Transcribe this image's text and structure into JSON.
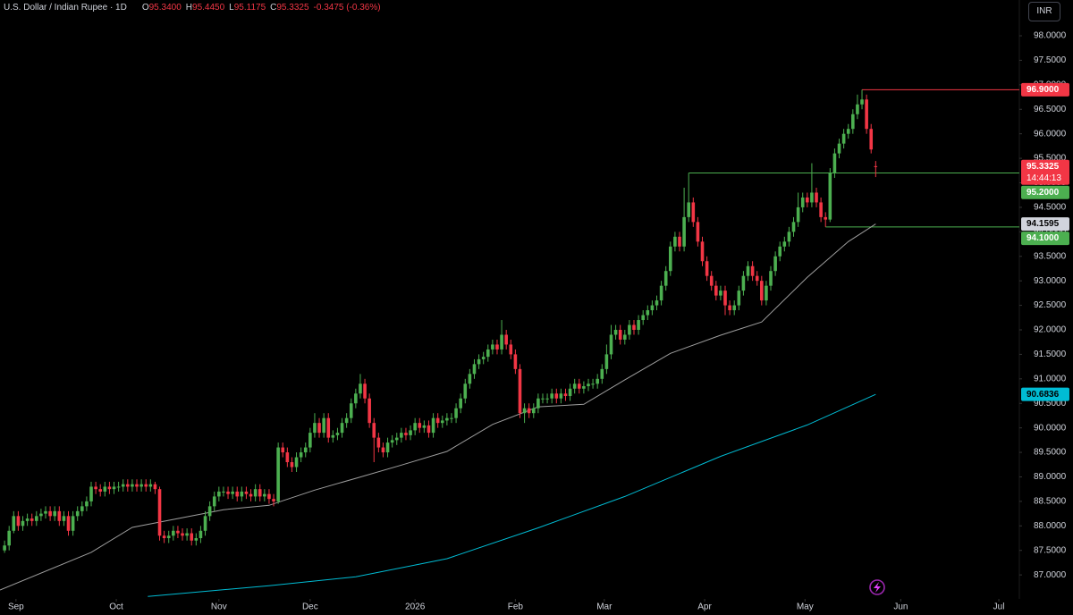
{
  "chart_data": {
    "type": "candlestick",
    "title": "U.S. Dollar / Indian Rupee · 1D",
    "ohlc_legend": [
      {
        "key": "O",
        "value": "95.3400"
      },
      {
        "key": "H",
        "value": "95.4450"
      },
      {
        "key": "L",
        "value": "95.1175"
      },
      {
        "key": "C",
        "value": "95.3325"
      }
    ],
    "change": "-0.3475 (-0.36%)",
    "currency": "INR",
    "up_color": "#4caf50",
    "down_color": "#f23645",
    "open": [
      87.5,
      87.6,
      87.9,
      88.2,
      88.0,
      88.1,
      88.15,
      88.1,
      88.2,
      88.25,
      88.3,
      88.2,
      88.3,
      88.1,
      88.2,
      87.9,
      88.2,
      88.3,
      88.4,
      88.5,
      88.8,
      88.75,
      88.7,
      88.8,
      88.75,
      88.8,
      88.8,
      88.85,
      88.8,
      88.85,
      88.8,
      88.85,
      88.8,
      88.85,
      88.75,
      87.8,
      87.75,
      87.8,
      87.9,
      87.85,
      87.8,
      87.85,
      87.7,
      87.75,
      87.9,
      88.2,
      88.4,
      88.6,
      88.7,
      88.7,
      88.65,
      88.7,
      88.6,
      88.7,
      88.65,
      88.6,
      88.75,
      88.6,
      88.65,
      88.55,
      88.5,
      89.6,
      89.5,
      89.3,
      89.2,
      89.4,
      89.5,
      89.6,
      89.9,
      90.1,
      89.9,
      90.2,
      89.8,
      89.85,
      89.9,
      90.1,
      90.2,
      90.5,
      90.7,
      90.9,
      90.6,
      90.1,
      89.8,
      89.6,
      89.5,
      89.7,
      89.75,
      89.8,
      89.9,
      89.85,
      89.95,
      90.1,
      90.0,
      90.05,
      89.9,
      90.2,
      90.1,
      90.15,
      90.2,
      90.2,
      90.4,
      90.6,
      90.9,
      91.1,
      91.3,
      91.4,
      91.45,
      91.6,
      91.7,
      91.6,
      91.9,
      91.7,
      91.5,
      91.2,
      90.3,
      90.4,
      90.3,
      90.4,
      90.6,
      90.6,
      90.6,
      90.7,
      90.6,
      90.7,
      90.65,
      90.8,
      90.9,
      90.8,
      90.85,
      90.9,
      90.9,
      91.0,
      91.2,
      91.5,
      91.9,
      92.0,
      91.8,
      91.9,
      92.1,
      92.0,
      92.2,
      92.3,
      92.4,
      92.5,
      92.6,
      92.9,
      93.2,
      93.7,
      93.9,
      93.7,
      94.3,
      94.6,
      94.2,
      93.8,
      93.4,
      93.1,
      92.9,
      92.7,
      92.8,
      92.5,
      92.4,
      92.5,
      92.8,
      93.1,
      93.3,
      93.1,
      93.0,
      92.6,
      92.9,
      93.2,
      93.5,
      93.7,
      93.8,
      94.0,
      94.2,
      94.5,
      94.7,
      94.6,
      94.8,
      94.6,
      94.3,
      94.25,
      95.2,
      95.6,
      95.8,
      96.0,
      96.1,
      96.4,
      96.6,
      96.7,
      96.1,
      95.34
    ],
    "high": [
      87.7,
      88.0,
      88.3,
      88.3,
      88.2,
      88.25,
      88.25,
      88.3,
      88.35,
      88.4,
      88.4,
      88.4,
      88.4,
      88.3,
      88.3,
      88.3,
      88.4,
      88.5,
      88.6,
      88.9,
      88.9,
      88.85,
      88.9,
      88.9,
      88.9,
      88.9,
      88.95,
      88.95,
      88.95,
      88.95,
      88.95,
      88.95,
      88.95,
      88.9,
      88.8,
      87.9,
      87.9,
      88.0,
      88.0,
      87.95,
      87.95,
      87.95,
      87.85,
      88.0,
      88.3,
      88.5,
      88.7,
      88.8,
      88.8,
      88.8,
      88.8,
      88.8,
      88.8,
      88.8,
      88.75,
      88.85,
      88.85,
      88.75,
      88.75,
      88.65,
      89.7,
      89.7,
      89.6,
      89.4,
      89.5,
      89.6,
      89.7,
      90.0,
      90.3,
      90.2,
      90.3,
      90.3,
      89.95,
      90.0,
      90.2,
      90.3,
      90.6,
      90.8,
      91.1,
      91.0,
      90.7,
      90.2,
      89.9,
      89.7,
      89.8,
      89.85,
      89.9,
      90.0,
      90.0,
      90.05,
      90.2,
      90.2,
      90.15,
      90.15,
      90.3,
      90.3,
      90.25,
      90.3,
      90.3,
      90.5,
      90.7,
      91.0,
      91.2,
      91.4,
      91.5,
      91.55,
      91.7,
      91.8,
      91.8,
      92.2,
      92.0,
      91.8,
      91.6,
      91.3,
      90.5,
      90.5,
      90.5,
      90.7,
      90.7,
      90.7,
      90.8,
      90.8,
      90.8,
      90.8,
      90.9,
      91.0,
      91.0,
      90.95,
      91.0,
      91.0,
      91.1,
      91.3,
      91.7,
      92.1,
      92.1,
      92.1,
      92.0,
      92.2,
      92.2,
      92.3,
      92.4,
      92.5,
      92.6,
      92.7,
      93.0,
      93.3,
      93.8,
      94.0,
      94.0,
      94.9,
      95.2,
      94.7,
      94.3,
      93.9,
      93.5,
      93.2,
      93.0,
      92.9,
      92.9,
      92.6,
      92.6,
      92.9,
      93.2,
      93.4,
      93.4,
      93.2,
      93.1,
      93.0,
      93.3,
      93.6,
      93.8,
      93.9,
      94.1,
      94.3,
      94.8,
      94.8,
      94.8,
      95.4,
      94.9,
      94.7,
      94.4,
      95.3,
      95.7,
      95.9,
      96.1,
      96.2,
      96.5,
      96.8,
      96.9,
      96.8,
      96.2,
      95.445
    ],
    "low": [
      87.45,
      87.5,
      87.85,
      87.9,
      87.9,
      88.0,
      88.0,
      88.0,
      88.1,
      88.15,
      88.1,
      88.1,
      88.0,
      88.0,
      87.8,
      87.8,
      88.1,
      88.2,
      88.3,
      88.4,
      88.65,
      88.6,
      88.6,
      88.65,
      88.65,
      88.7,
      88.7,
      88.7,
      88.7,
      88.7,
      88.7,
      88.7,
      88.7,
      88.65,
      87.7,
      87.65,
      87.65,
      87.7,
      87.75,
      87.7,
      87.7,
      87.6,
      87.6,
      87.65,
      87.8,
      88.1,
      88.3,
      88.5,
      88.6,
      88.55,
      88.55,
      88.5,
      88.5,
      88.55,
      88.5,
      88.5,
      88.5,
      88.5,
      88.45,
      88.4,
      88.45,
      89.4,
      89.2,
      89.1,
      89.1,
      89.3,
      89.4,
      89.5,
      89.8,
      89.8,
      89.8,
      89.7,
      89.7,
      89.75,
      89.8,
      90.0,
      90.1,
      90.4,
      90.6,
      90.5,
      90.0,
      89.3,
      89.5,
      89.4,
      89.4,
      89.6,
      89.65,
      89.7,
      89.75,
      89.75,
      89.85,
      89.9,
      89.9,
      89.8,
      89.8,
      90.0,
      90.0,
      90.05,
      90.1,
      90.1,
      90.3,
      90.5,
      90.8,
      91.0,
      91.2,
      91.3,
      91.35,
      91.5,
      91.5,
      91.5,
      91.6,
      91.4,
      91.1,
      90.2,
      90.1,
      90.2,
      90.2,
      90.3,
      90.5,
      90.5,
      90.5,
      90.5,
      90.5,
      90.55,
      90.55,
      90.7,
      90.7,
      90.7,
      90.75,
      90.8,
      90.8,
      90.9,
      91.1,
      91.4,
      91.8,
      91.7,
      91.7,
      91.8,
      91.9,
      91.9,
      92.1,
      92.2,
      92.3,
      92.4,
      92.5,
      92.8,
      93.1,
      93.6,
      93.6,
      93.6,
      94.2,
      94.1,
      93.7,
      93.3,
      93.0,
      92.8,
      92.6,
      92.6,
      92.3,
      92.3,
      92.3,
      92.4,
      92.7,
      93.0,
      93.0,
      92.9,
      92.5,
      92.5,
      92.8,
      93.1,
      93.4,
      93.6,
      93.7,
      93.9,
      94.1,
      94.4,
      94.5,
      94.5,
      94.5,
      94.2,
      94.1,
      94.2,
      95.1,
      95.5,
      95.7,
      95.9,
      96.0,
      96.3,
      96.5,
      96.0,
      95.6,
      95.1175
    ],
    "close": [
      87.6,
      87.9,
      88.2,
      88.0,
      88.1,
      88.15,
      88.1,
      88.2,
      88.25,
      88.3,
      88.2,
      88.3,
      88.1,
      88.2,
      87.9,
      88.2,
      88.3,
      88.4,
      88.5,
      88.8,
      88.75,
      88.7,
      88.8,
      88.75,
      88.8,
      88.8,
      88.85,
      88.8,
      88.85,
      88.8,
      88.85,
      88.8,
      88.85,
      88.75,
      87.8,
      87.75,
      87.8,
      87.9,
      87.85,
      87.8,
      87.85,
      87.7,
      87.75,
      87.9,
      88.2,
      88.4,
      88.6,
      88.7,
      88.7,
      88.65,
      88.7,
      88.6,
      88.7,
      88.65,
      88.6,
      88.75,
      88.6,
      88.65,
      88.55,
      88.5,
      89.6,
      89.5,
      89.3,
      89.2,
      89.4,
      89.5,
      89.6,
      89.9,
      90.1,
      89.9,
      90.2,
      89.8,
      89.85,
      89.9,
      90.1,
      90.2,
      90.5,
      90.7,
      90.9,
      90.6,
      90.1,
      89.8,
      89.6,
      89.5,
      89.7,
      89.75,
      89.8,
      89.9,
      89.85,
      89.95,
      90.1,
      90.0,
      90.05,
      89.9,
      90.2,
      90.1,
      90.15,
      90.2,
      90.2,
      90.4,
      90.6,
      90.9,
      91.1,
      91.3,
      91.4,
      91.45,
      91.6,
      91.7,
      91.6,
      91.9,
      91.7,
      91.5,
      91.2,
      90.3,
      90.4,
      90.3,
      90.4,
      90.6,
      90.6,
      90.6,
      90.7,
      90.6,
      90.7,
      90.65,
      90.8,
      90.9,
      90.8,
      90.85,
      90.9,
      90.9,
      91.0,
      91.2,
      91.5,
      91.9,
      92.0,
      91.8,
      91.9,
      92.1,
      92.0,
      92.2,
      92.3,
      92.4,
      92.5,
      92.6,
      92.9,
      93.2,
      93.7,
      93.9,
      93.7,
      94.3,
      94.6,
      94.2,
      93.8,
      93.4,
      93.1,
      92.9,
      92.7,
      92.8,
      92.5,
      92.4,
      92.5,
      92.8,
      93.1,
      93.3,
      93.1,
      93.0,
      92.6,
      92.9,
      93.2,
      93.5,
      93.7,
      93.8,
      94.0,
      94.2,
      94.5,
      94.7,
      94.6,
      94.8,
      94.6,
      94.3,
      94.25,
      95.2,
      95.6,
      95.8,
      96.0,
      96.1,
      96.4,
      96.6,
      96.7,
      96.1,
      95.68,
      95.3325
    ],
    "ma": [
      {
        "color": "#9e9e9e",
        "x": [
          -1,
          19,
          28,
          38,
          48,
          58,
          68,
          77,
          87,
          97,
          107,
          117,
          127,
          136,
          146,
          157,
          166,
          176,
          185,
          191
        ],
        "values": [
          86.69,
          87.46,
          87.97,
          88.15,
          88.33,
          88.42,
          88.73,
          88.97,
          89.24,
          89.52,
          90.07,
          90.43,
          90.48,
          90.98,
          91.52,
          91.89,
          92.16,
          93.07,
          93.8,
          94.1595
        ]
      },
      {
        "color": "#00bcd4",
        "x": [
          31.4,
          58,
          77,
          97,
          117,
          136,
          157,
          176,
          191
        ],
        "values": [
          86.56,
          86.78,
          86.96,
          87.33,
          87.96,
          88.6,
          89.42,
          90.06,
          90.6836
        ]
      }
    ],
    "levels": [
      {
        "x": 188,
        "value": 96.9,
        "color": "#f23645"
      },
      {
        "x": 150,
        "value": 95.2,
        "color": "#4caf50"
      },
      {
        "x": 180,
        "value": 94.1,
        "color": "#4caf50"
      }
    ],
    "price_tags": [
      {
        "value": 96.9,
        "label": "96.9000",
        "color": "#f23645",
        "text_color": "#ffffff"
      },
      {
        "value": 95.3325,
        "label": "95.3325",
        "countdown": "14:44:13",
        "color": "#f23645",
        "text_color": "#ffffff"
      },
      {
        "value": 95.2,
        "label": "95.2000",
        "color": "#4caf50",
        "text_color": "#ffffff"
      },
      {
        "value": 94.1595,
        "label": "94.1595",
        "color": "#d1d4dc",
        "text_color": "#000000"
      },
      {
        "value": 94.1,
        "label": "94.1000",
        "color": "#4caf50",
        "text_color": "#ffffff"
      },
      {
        "value": 90.6836,
        "label": "90.6836",
        "color": "#00bcd4",
        "text_color": "#000000"
      }
    ],
    "xlim": [
      -1,
      222.5
    ],
    "xticks": [
      {
        "value": 2.5,
        "label": "Sep"
      },
      {
        "value": 24.5,
        "label": "Oct"
      },
      {
        "value": 47,
        "label": "Nov"
      },
      {
        "value": 67,
        "label": "Dec"
      },
      {
        "value": 90,
        "label": "2026"
      },
      {
        "value": 112,
        "label": "Feb"
      },
      {
        "value": 131.5,
        "label": "Mar"
      },
      {
        "value": 153.5,
        "label": "Apr"
      },
      {
        "value": 175.5,
        "label": "May"
      },
      {
        "value": 196.5,
        "label": "Jun"
      },
      {
        "value": 218,
        "label": "Jul"
      }
    ],
    "ylim": [
      86.51,
      98.73
    ],
    "yticks": [
      {
        "value": 87,
        "label": "87.0000"
      },
      {
        "value": 87.5,
        "label": "87.5000"
      },
      {
        "value": 88,
        "label": "88.0000"
      },
      {
        "value": 88.5,
        "label": "88.5000"
      },
      {
        "value": 89,
        "label": "89.0000"
      },
      {
        "value": 89.5,
        "label": "89.5000"
      },
      {
        "value": 90,
        "label": "90.0000"
      },
      {
        "value": 90.5,
        "label": "90.5000"
      },
      {
        "value": 91,
        "label": "91.0000"
      },
      {
        "value": 91.5,
        "label": "91.5000"
      },
      {
        "value": 92,
        "label": "92.0000"
      },
      {
        "value": 92.5,
        "label": "92.5000"
      },
      {
        "value": 93,
        "label": "93.0000"
      },
      {
        "value": 93.5,
        "label": "93.5000"
      },
      {
        "value": 94,
        "label": "94.0000"
      },
      {
        "value": 94.5,
        "label": "94.5000"
      },
      {
        "value": 95,
        "label": "95.0000"
      },
      {
        "value": 95.5,
        "label": "95.5000"
      },
      {
        "value": 96,
        "label": "96.0000"
      },
      {
        "value": 96.5,
        "label": "96.5000"
      },
      {
        "value": 97,
        "label": "97.0000"
      },
      {
        "value": 97.5,
        "label": "97.5000"
      },
      {
        "value": 98,
        "label": "98.0000"
      }
    ]
  }
}
